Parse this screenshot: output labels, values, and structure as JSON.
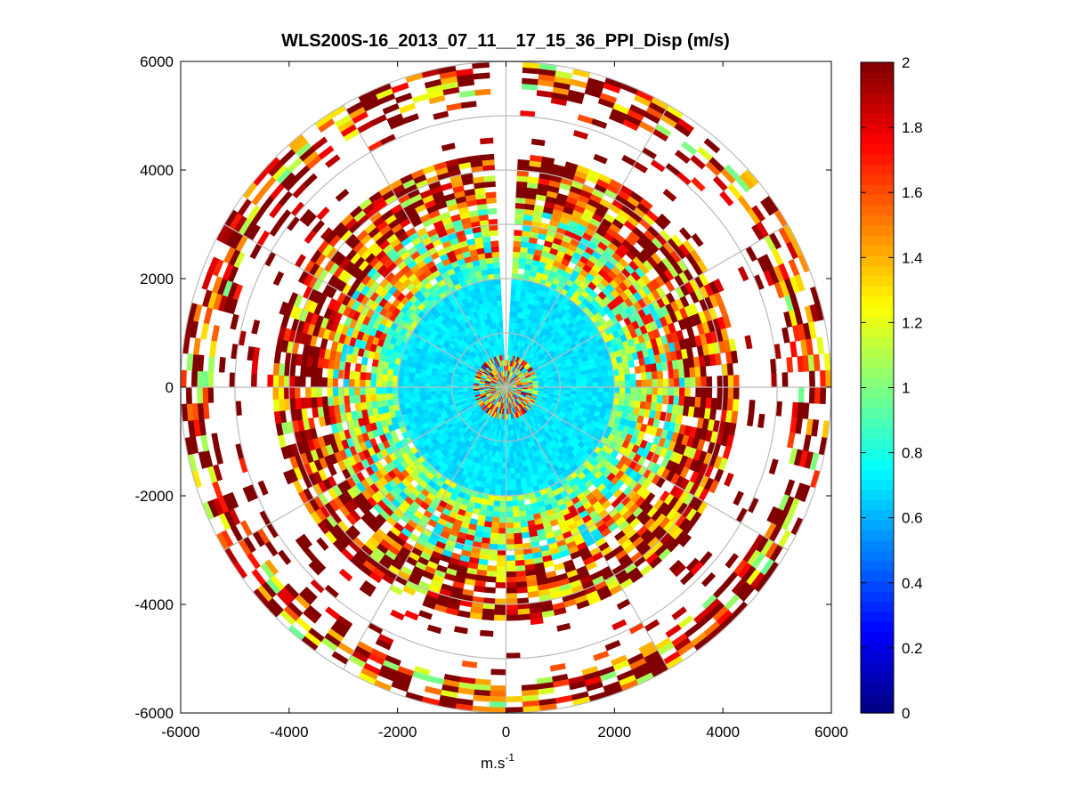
{
  "chart_data": {
    "type": "heatmap",
    "subtype": "polar-ppi",
    "title": "WLS200S-16_2013_07_11__17_15_36_PPI_Disp (m/s)",
    "xlabel": "m.s",
    "xlabel_superscript": "-1",
    "ylabel": "",
    "xlim": [
      -6000,
      6000
    ],
    "ylim": [
      -6000,
      6000
    ],
    "x_ticks": [
      "-6000",
      "-4000",
      "-2000",
      "0",
      "2000",
      "4000",
      "6000"
    ],
    "x_tick_values": [
      -6000,
      -4000,
      -2000,
      0,
      2000,
      4000,
      6000
    ],
    "y_ticks": [
      "6000",
      "4000",
      "2000",
      "0",
      "-2000",
      "-4000",
      "-6000"
    ],
    "y_tick_values": [
      6000,
      4000,
      2000,
      0,
      -2000,
      -4000,
      -6000
    ],
    "grid": true,
    "grid_rings_m": [
      1000,
      2000,
      3000,
      4000,
      5000,
      6000
    ],
    "grid_spoke_step_deg": 30,
    "max_range_m": 6000,
    "missing_sector_deg": [
      -4,
      4
    ],
    "colorbar": {
      "colormap": "jet",
      "clim": [
        0,
        2
      ],
      "ticks": [
        "0",
        "0.2",
        "0.4",
        "0.6",
        "0.8",
        "1",
        "1.2",
        "1.4",
        "1.6",
        "1.8",
        "2"
      ],
      "tick_values": [
        0,
        0.2,
        0.4,
        0.6,
        0.8,
        1,
        1.2,
        1.4,
        1.6,
        1.8,
        2
      ]
    },
    "range_profile": [
      {
        "r_from": 0,
        "r_to": 600,
        "value": 1.2,
        "spread": 0.8,
        "coverage": 1.0
      },
      {
        "r_from": 600,
        "r_to": 2000,
        "value": 0.7,
        "spread": 0.06,
        "coverage": 1.0
      },
      {
        "r_from": 2000,
        "r_to": 2400,
        "value": 0.95,
        "spread": 0.3,
        "coverage": 0.98
      },
      {
        "r_from": 2400,
        "r_to": 3300,
        "value": 1.25,
        "spread": 0.6,
        "coverage": 0.95
      },
      {
        "r_from": 3300,
        "r_to": 4300,
        "value": 1.55,
        "spread": 0.5,
        "coverage": 0.85
      },
      {
        "r_from": 4300,
        "r_to": 5000,
        "value": 1.9,
        "spread": 0.15,
        "coverage": 0.08
      },
      {
        "r_from": 5000,
        "r_to": 5400,
        "value": 1.85,
        "spread": 0.3,
        "coverage": 0.15
      },
      {
        "r_from": 5400,
        "r_to": 6000,
        "value": 1.5,
        "spread": 0.55,
        "coverage": 0.6
      }
    ]
  }
}
